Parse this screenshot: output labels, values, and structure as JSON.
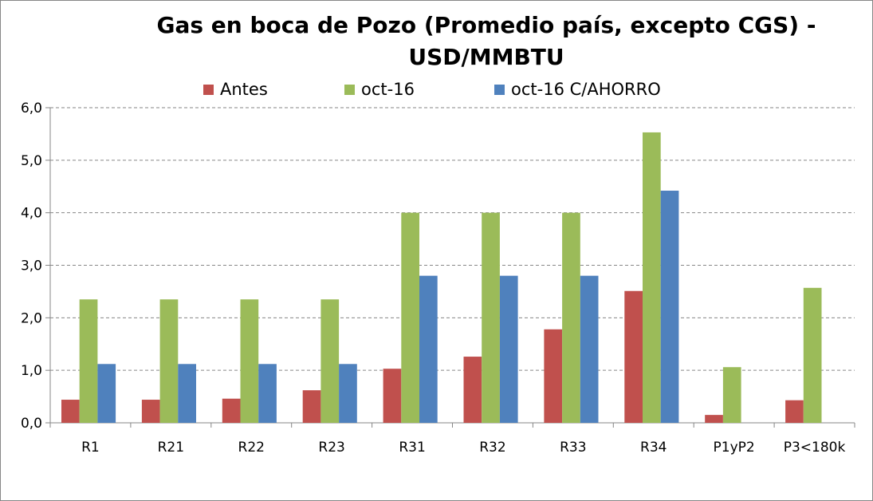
{
  "chart_data": {
    "type": "bar",
    "title": "Gas en boca de Pozo (Promedio país, excepto CGS) - USD/MMBTU",
    "title_lines": [
      "Gas en boca de Pozo (Promedio país, excepto CGS) -",
      "USD/MMBTU"
    ],
    "categories": [
      "R1",
      "R21",
      "R22",
      "R23",
      "R31",
      "R32",
      "R33",
      "R34",
      "P1yP2",
      "P3<180k"
    ],
    "series": [
      {
        "name": "Antes",
        "color": "#C0504D",
        "values": [
          0.44,
          0.44,
          0.46,
          0.62,
          1.03,
          1.26,
          1.78,
          2.51,
          0.15,
          0.43
        ]
      },
      {
        "name": "oct-16",
        "color": "#9BBB59",
        "values": [
          2.35,
          2.35,
          2.35,
          2.35,
          4.0,
          4.0,
          4.0,
          5.53,
          1.06,
          2.57
        ]
      },
      {
        "name": "oct-16 C/AHORRO",
        "color": "#4F81BD",
        "values": [
          1.12,
          1.12,
          1.12,
          1.12,
          2.8,
          2.8,
          2.8,
          4.42,
          null,
          null
        ]
      }
    ],
    "yticks": [
      "0,0",
      "1,0",
      "2,0",
      "3,0",
      "4,0",
      "5,0",
      "6,0"
    ],
    "ylim": [
      0,
      6
    ],
    "grid": true,
    "legend_position": "top"
  }
}
